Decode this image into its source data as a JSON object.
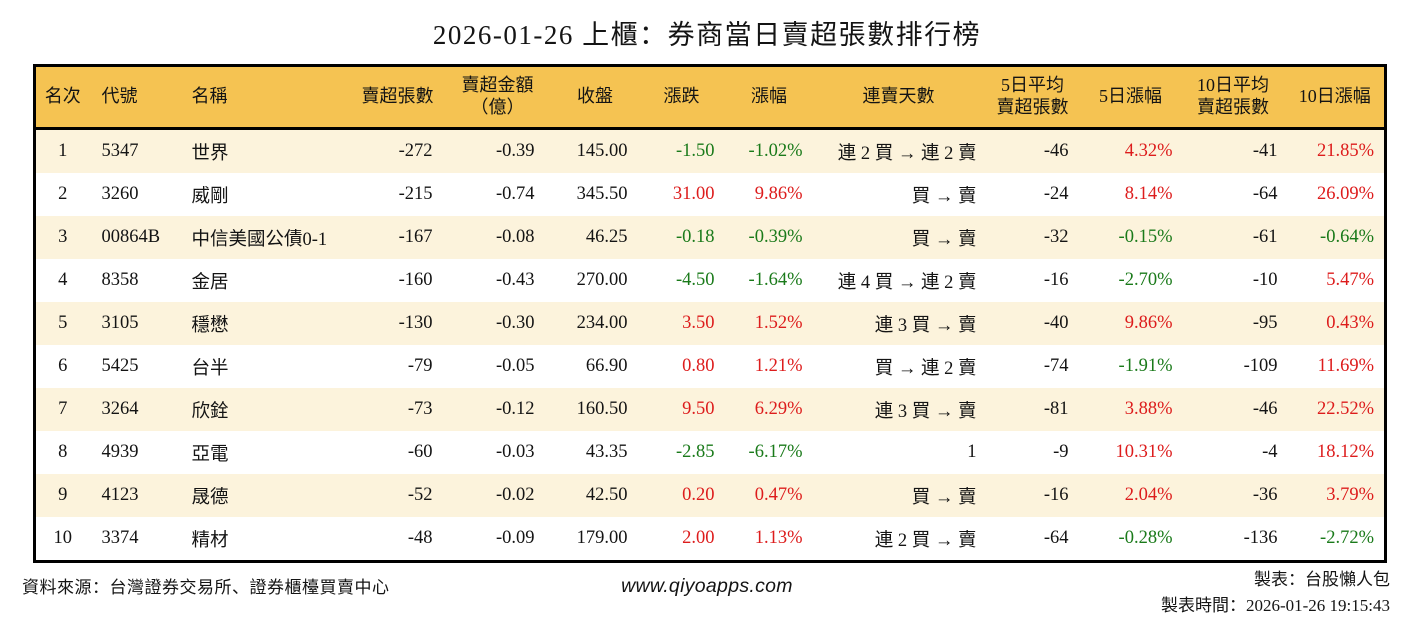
{
  "title": "2026-01-26 上櫃：券商當日賣超張數排行榜",
  "colors": {
    "header_bg": "#F5C352",
    "stripe_bg": "#FCF3DC",
    "up_red": "#DD1C1C",
    "down_green": "#1A7A1A",
    "border": "#000000",
    "background": "#FFFFFF"
  },
  "chart_data": {
    "type": "table",
    "title": "2026-01-26 上櫃：券商當日賣超張數排行榜",
    "header_labels": [
      "名次",
      "代號",
      "名稱",
      "賣超張數",
      "賣超金額\n（億）",
      "收盤",
      "漲跌",
      "漲幅",
      "連賣天數",
      "5日平均\n賣超張數",
      "5日漲幅",
      "10日平均\n賣超張數",
      "10日漲幅"
    ],
    "rows": [
      [
        {
          "t": "1"
        },
        {
          "t": "5347"
        },
        {
          "t": "世界"
        },
        {
          "t": "-272"
        },
        {
          "t": "-0.39"
        },
        {
          "t": "145.00"
        },
        {
          "t": "-1.50",
          "c": "g"
        },
        {
          "t": "-1.02%",
          "c": "g"
        },
        {
          "t": "連 2 買 → 連 2 賣"
        },
        {
          "t": "-46"
        },
        {
          "t": "4.32%",
          "c": "r"
        },
        {
          "t": "-41"
        },
        {
          "t": "21.85%",
          "c": "r"
        }
      ],
      [
        {
          "t": "2"
        },
        {
          "t": "3260"
        },
        {
          "t": "威剛"
        },
        {
          "t": "-215"
        },
        {
          "t": "-0.74"
        },
        {
          "t": "345.50"
        },
        {
          "t": "31.00",
          "c": "r"
        },
        {
          "t": "9.86%",
          "c": "r"
        },
        {
          "t": "買 → 賣"
        },
        {
          "t": "-24"
        },
        {
          "t": "8.14%",
          "c": "r"
        },
        {
          "t": "-64"
        },
        {
          "t": "26.09%",
          "c": "r"
        }
      ],
      [
        {
          "t": "3"
        },
        {
          "t": "00864B"
        },
        {
          "t": "中信美國公債0-1"
        },
        {
          "t": "-167"
        },
        {
          "t": "-0.08"
        },
        {
          "t": "46.25"
        },
        {
          "t": "-0.18",
          "c": "g"
        },
        {
          "t": "-0.39%",
          "c": "g"
        },
        {
          "t": "買 → 賣"
        },
        {
          "t": "-32"
        },
        {
          "t": "-0.15%",
          "c": "g"
        },
        {
          "t": "-61"
        },
        {
          "t": "-0.64%",
          "c": "g"
        }
      ],
      [
        {
          "t": "4"
        },
        {
          "t": "8358"
        },
        {
          "t": "金居"
        },
        {
          "t": "-160"
        },
        {
          "t": "-0.43"
        },
        {
          "t": "270.00"
        },
        {
          "t": "-4.50",
          "c": "g"
        },
        {
          "t": "-1.64%",
          "c": "g"
        },
        {
          "t": "連 4 買 → 連 2 賣"
        },
        {
          "t": "-16"
        },
        {
          "t": "-2.70%",
          "c": "g"
        },
        {
          "t": "-10"
        },
        {
          "t": "5.47%",
          "c": "r"
        }
      ],
      [
        {
          "t": "5"
        },
        {
          "t": "3105"
        },
        {
          "t": "穩懋"
        },
        {
          "t": "-130"
        },
        {
          "t": "-0.30"
        },
        {
          "t": "234.00"
        },
        {
          "t": "3.50",
          "c": "r"
        },
        {
          "t": "1.52%",
          "c": "r"
        },
        {
          "t": "連 3 買 → 賣"
        },
        {
          "t": "-40"
        },
        {
          "t": "9.86%",
          "c": "r"
        },
        {
          "t": "-95"
        },
        {
          "t": "0.43%",
          "c": "r"
        }
      ],
      [
        {
          "t": "6"
        },
        {
          "t": "5425"
        },
        {
          "t": "台半"
        },
        {
          "t": "-79"
        },
        {
          "t": "-0.05"
        },
        {
          "t": "66.90"
        },
        {
          "t": "0.80",
          "c": "r"
        },
        {
          "t": "1.21%",
          "c": "r"
        },
        {
          "t": "買 → 連 2 賣"
        },
        {
          "t": "-74"
        },
        {
          "t": "-1.91%",
          "c": "g"
        },
        {
          "t": "-109"
        },
        {
          "t": "11.69%",
          "c": "r"
        }
      ],
      [
        {
          "t": "7"
        },
        {
          "t": "3264"
        },
        {
          "t": "欣銓"
        },
        {
          "t": "-73"
        },
        {
          "t": "-0.12"
        },
        {
          "t": "160.50"
        },
        {
          "t": "9.50",
          "c": "r"
        },
        {
          "t": "6.29%",
          "c": "r"
        },
        {
          "t": "連 3 買 → 賣"
        },
        {
          "t": "-81"
        },
        {
          "t": "3.88%",
          "c": "r"
        },
        {
          "t": "-46"
        },
        {
          "t": "22.52%",
          "c": "r"
        }
      ],
      [
        {
          "t": "8"
        },
        {
          "t": "4939"
        },
        {
          "t": "亞電"
        },
        {
          "t": "-60"
        },
        {
          "t": "-0.03"
        },
        {
          "t": "43.35"
        },
        {
          "t": "-2.85",
          "c": "g"
        },
        {
          "t": "-6.17%",
          "c": "g"
        },
        {
          "t": "1"
        },
        {
          "t": "-9"
        },
        {
          "t": "10.31%",
          "c": "r"
        },
        {
          "t": "-4"
        },
        {
          "t": "18.12%",
          "c": "r"
        }
      ],
      [
        {
          "t": "9"
        },
        {
          "t": "4123"
        },
        {
          "t": "晟德"
        },
        {
          "t": "-52"
        },
        {
          "t": "-0.02"
        },
        {
          "t": "42.50"
        },
        {
          "t": "0.20",
          "c": "r"
        },
        {
          "t": "0.47%",
          "c": "r"
        },
        {
          "t": "買 → 賣"
        },
        {
          "t": "-16"
        },
        {
          "t": "2.04%",
          "c": "r"
        },
        {
          "t": "-36"
        },
        {
          "t": "3.79%",
          "c": "r"
        }
      ],
      [
        {
          "t": "10"
        },
        {
          "t": "3374"
        },
        {
          "t": "精材"
        },
        {
          "t": "-48"
        },
        {
          "t": "-0.09"
        },
        {
          "t": "179.00"
        },
        {
          "t": "2.00",
          "c": "r"
        },
        {
          "t": "1.13%",
          "c": "r"
        },
        {
          "t": "連 2 買 → 賣"
        },
        {
          "t": "-64"
        },
        {
          "t": "-0.28%",
          "c": "g"
        },
        {
          "t": "-136"
        },
        {
          "t": "-2.72%",
          "c": "g"
        }
      ]
    ]
  },
  "footer": {
    "source": "資料來源：台灣證券交易所、證券櫃檯買賣中心",
    "website": "www.qiyoapps.com",
    "author": "製表：台股懶人包",
    "timestamp": "製表時間：2026-01-26 19:15:43"
  }
}
